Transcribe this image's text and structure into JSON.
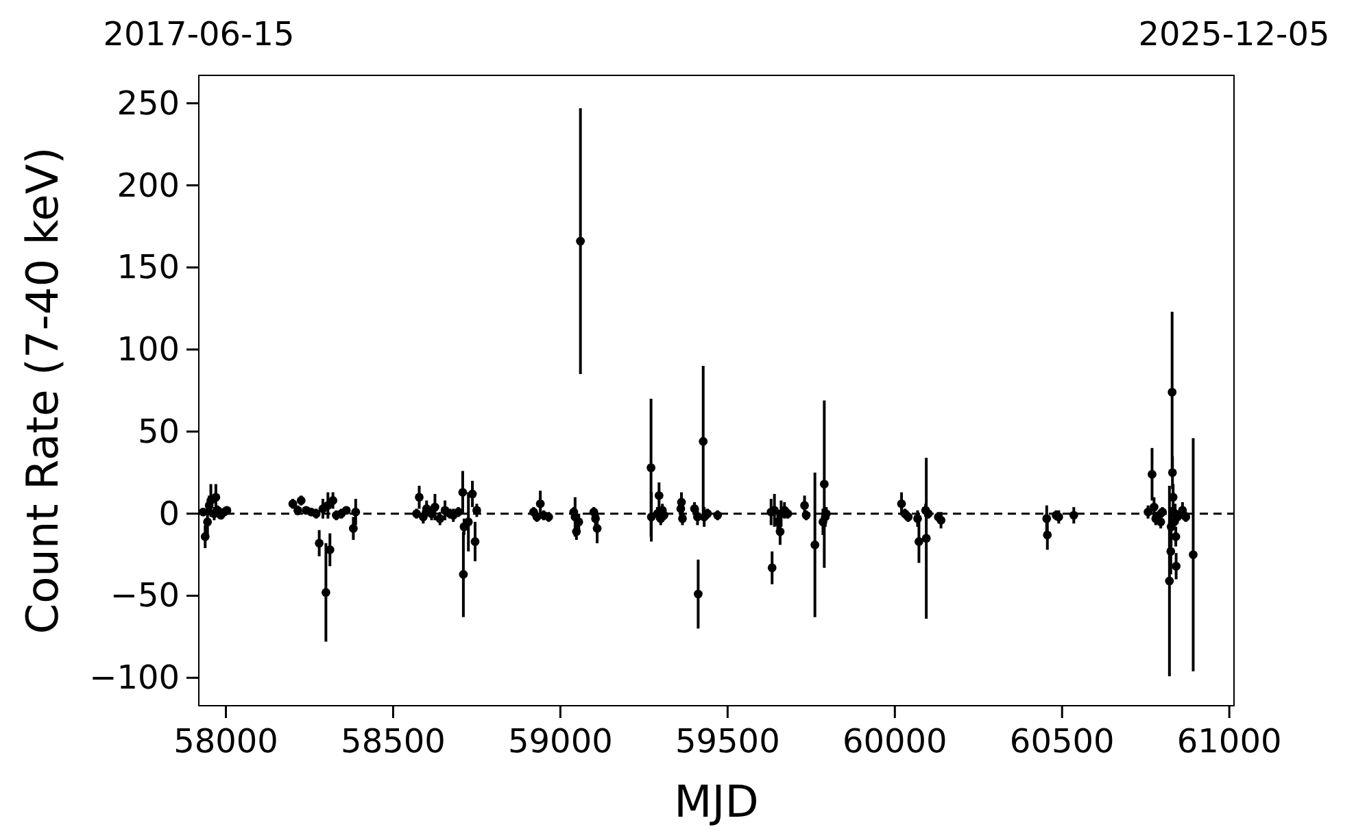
{
  "chart_data": {
    "type": "scatter",
    "xlabel": "MJD",
    "ylabel": "Count Rate (7-40 keV)",
    "xlim": [
      57919,
      61014
    ],
    "xticks": [
      58000,
      58500,
      59000,
      59500,
      60000,
      60500,
      61000
    ],
    "x2lim": [
      "2017-06-15",
      "2025-12-05"
    ],
    "x2ticks": [
      "2017-06-15",
      "2025-12-05"
    ],
    "ylim": [
      -117,
      267
    ],
    "yticks": [
      {
        "value": -100,
        "label": "−100"
      },
      {
        "value": -50,
        "label": "−50"
      },
      0,
      50,
      100,
      150,
      200,
      250
    ],
    "grid": false,
    "marker": "circle",
    "ref_lines": [
      {
        "axis": "y",
        "value": 0,
        "color": "#000000",
        "line_style": "dashed"
      }
    ],
    "series": [
      {
        "color": "#000000",
        "x": [
          57932,
          57938,
          57945,
          57950,
          57955,
          57965,
          57970,
          57975,
          57985,
          57995,
          58003,
          58200,
          58215,
          58225,
          58240,
          58255,
          58270,
          58279,
          58290,
          58299,
          58305,
          58311,
          58320,
          58330,
          58345,
          58360,
          58381,
          58388,
          58570,
          58578,
          58590,
          58600,
          58615,
          58625,
          58640,
          58655,
          58670,
          58680,
          58695,
          58708,
          58710,
          58712,
          58725,
          58737,
          58745,
          58750,
          58920,
          58930,
          58940,
          58950,
          58965,
          59040,
          59044,
          59048,
          59055,
          59060,
          59100,
          59105,
          59110,
          59271,
          59272,
          59290,
          59295,
          59300,
          59305,
          59310,
          59360,
          59362,
          59365,
          59401,
          59410,
          59412,
          59427,
          59430,
          59440,
          59470,
          59630,
          59633,
          59640,
          59650,
          59657,
          59660,
          59670,
          59680,
          59730,
          59735,
          59761,
          59785,
          59789,
          59792,
          59795,
          60020,
          60030,
          60040,
          60068,
          60072,
          60092,
          60094,
          60100,
          60130,
          60138,
          60454,
          60456,
          60482,
          60490,
          60535,
          60757,
          60769,
          60775,
          60780,
          60790,
          60795,
          60800,
          60821,
          60825,
          60826,
          60829,
          60830,
          60832,
          60835,
          60838,
          60840,
          60841,
          60845,
          60860,
          60870,
          60892
        ],
        "values": [
          1,
          -14,
          -5,
          5,
          8,
          0,
          10,
          2,
          -1,
          1,
          2,
          6,
          2,
          8,
          2,
          1,
          0,
          -18,
          3,
          -48,
          5,
          -22,
          8,
          -1,
          0,
          2,
          -9,
          1,
          0,
          10,
          -2,
          3,
          0,
          4,
          -3,
          2,
          0,
          -1,
          1,
          13,
          -37,
          -8,
          -5,
          12,
          -17,
          2,
          1,
          -2,
          6,
          -1,
          -2,
          1,
          -2,
          -11,
          -5,
          166,
          1,
          -3,
          -9,
          28,
          -2,
          0,
          11,
          -3,
          2,
          -1,
          3,
          7,
          -3,
          3,
          -2,
          -49,
          44,
          -2,
          0,
          -1,
          1,
          -33,
          2,
          -5,
          -11,
          0,
          2,
          0,
          5,
          -1,
          -19,
          -5,
          18,
          -2,
          0,
          6,
          0,
          -2,
          -3,
          -17,
          2,
          -15,
          0,
          -2,
          -4,
          -3,
          -13,
          -1,
          -2,
          -1,
          1,
          24,
          4,
          -3,
          -1,
          -5,
          1,
          -41,
          -23,
          -8,
          74,
          25,
          10,
          -5,
          0,
          -14,
          -32,
          -2,
          2,
          -2,
          -25
        ],
        "errors": [
          2,
          7,
          10,
          6,
          10,
          4,
          8,
          3,
          2,
          2,
          2,
          3,
          3,
          3,
          2,
          2,
          3,
          8,
          6,
          30,
          8,
          10,
          5,
          3,
          3,
          2,
          7,
          8,
          3,
          7,
          4,
          5,
          4,
          8,
          4,
          6,
          3,
          4,
          3,
          13,
          26,
          5,
          18,
          8,
          12,
          4,
          3,
          3,
          8,
          3,
          3,
          3,
          12,
          5,
          5,
          81,
          3,
          5,
          9,
          42,
          15,
          4,
          8,
          4,
          4,
          3,
          4,
          6,
          4,
          4,
          5,
          21,
          46,
          6,
          3,
          3,
          8,
          10,
          10,
          6,
          8,
          8,
          5,
          3,
          6,
          3,
          44,
          8,
          51,
          6,
          4,
          7,
          3,
          3,
          5,
          13,
          4,
          49,
          3,
          3,
          5,
          8,
          9,
          3,
          4,
          5,
          4,
          16,
          6,
          4,
          3,
          4,
          3,
          58,
          14,
          12,
          49,
          10,
          8,
          5,
          6,
          6,
          8,
          4,
          5,
          3,
          71
        ]
      }
    ]
  }
}
